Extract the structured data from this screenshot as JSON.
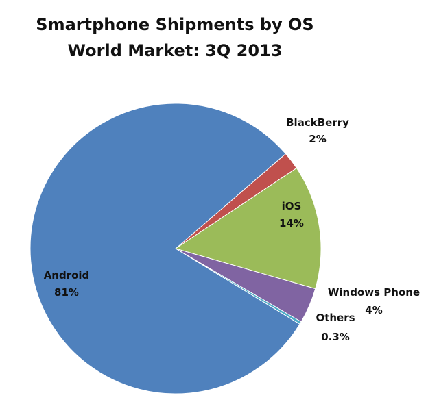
{
  "chart_data": {
    "type": "pie",
    "title": "Smartphone Shipments by OS",
    "subtitle": "World Market: 3Q 2013",
    "slices": [
      {
        "name": "Android",
        "value": 81,
        "value_label": "81%",
        "color": "#4f81bd"
      },
      {
        "name": "BlackBerry",
        "value": 2,
        "value_label": "2%",
        "color": "#c0504d"
      },
      {
        "name": "iOS",
        "value": 14,
        "value_label": "14%",
        "color": "#9bbb59"
      },
      {
        "name": "Windows Phone",
        "value": 4,
        "value_label": "4%",
        "color": "#8064a2"
      },
      {
        "name": "Others",
        "value": 0.3,
        "value_label": "0.3%",
        "color": "#4bacc6"
      }
    ],
    "legend": "none"
  }
}
